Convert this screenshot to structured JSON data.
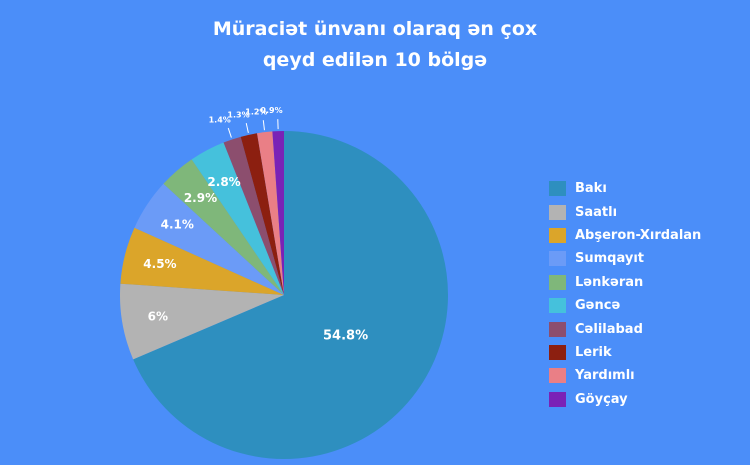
{
  "chart_data": {
    "type": "pie",
    "title_lines": [
      "Müraciət ünvanı olaraq ən çox",
      "qeyd edilən 10 bölgə"
    ],
    "legend_position": "right",
    "slices": [
      {
        "label": "Bakı",
        "value": 54.8,
        "display": "54.8%",
        "color": "#2e8fbf"
      },
      {
        "label": "Saatlı",
        "value": 6,
        "display": "6%",
        "color": "#b3b3b3"
      },
      {
        "label": "Abşeron-Xırdalan",
        "value": 4.5,
        "display": "4.5%",
        "color": "#dba52a"
      },
      {
        "label": "Sumqayıt",
        "value": 4.1,
        "display": "4.1%",
        "color": "#6b9bf7"
      },
      {
        "label": "Lənkəran",
        "value": 2.9,
        "display": "2.9%",
        "color": "#7fb77a"
      },
      {
        "label": "Gəncə",
        "value": 2.8,
        "display": "2.8%",
        "color": "#45c1dc"
      },
      {
        "label": "Cəlilabad",
        "value": 1.4,
        "display": "1.4%",
        "color": "#8c4e6e"
      },
      {
        "label": "Lerik",
        "value": 1.3,
        "display": "1.3%",
        "color": "#8c1f10"
      },
      {
        "label": "Yardımlı",
        "value": 1.2,
        "display": "1.2%",
        "color": "#ea7f86"
      },
      {
        "label": "Göyçay",
        "value": 0.9,
        "display": "0.9%",
        "color": "#7a22b6"
      }
    ]
  }
}
